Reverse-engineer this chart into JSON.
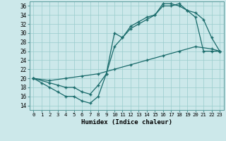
{
  "xlabel": "Humidex (Indice chaleur)",
  "background_color": "#cce8ea",
  "grid_color": "#99cccc",
  "line_color": "#1a6b6b",
  "xlim": [
    -0.5,
    23.5
  ],
  "ylim": [
    13,
    37
  ],
  "yticks": [
    14,
    16,
    18,
    20,
    22,
    24,
    26,
    28,
    30,
    32,
    34,
    36
  ],
  "xticks": [
    0,
    1,
    2,
    3,
    4,
    5,
    6,
    7,
    8,
    9,
    10,
    11,
    12,
    13,
    14,
    15,
    16,
    17,
    18,
    19,
    20,
    21,
    22,
    23
  ],
  "line1_x": [
    0,
    1,
    2,
    3,
    4,
    5,
    6,
    7,
    8,
    9,
    10,
    11,
    12,
    13,
    14,
    15,
    16,
    17,
    18,
    19,
    20,
    21,
    22,
    23
  ],
  "line1_y": [
    20,
    19,
    18,
    17,
    16,
    16,
    15,
    14.5,
    16,
    21,
    30,
    29,
    31.5,
    32.5,
    33.5,
    34,
    36.5,
    36.5,
    36,
    35,
    33.5,
    26,
    26,
    26
  ],
  "line2_x": [
    0,
    2,
    3,
    4,
    5,
    6,
    7,
    8,
    9,
    10,
    11,
    12,
    13,
    14,
    15,
    16,
    17,
    18,
    19,
    20,
    21,
    22,
    23
  ],
  "line2_y": [
    20,
    19,
    18.5,
    18,
    18,
    17,
    16.5,
    18.5,
    21,
    27,
    29,
    31,
    32,
    33,
    34,
    36,
    36,
    36.5,
    35,
    34.5,
    33,
    29,
    26
  ],
  "line3_x": [
    0,
    2,
    4,
    6,
    8,
    10,
    12,
    14,
    16,
    18,
    20,
    22,
    23
  ],
  "line3_y": [
    20,
    19.5,
    20,
    20.5,
    21,
    22,
    23,
    24,
    25,
    26,
    27,
    26.5,
    26
  ]
}
